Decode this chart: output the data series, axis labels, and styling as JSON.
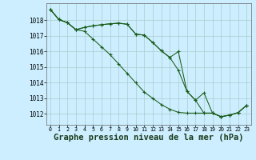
{
  "background_color": "#cceeff",
  "grid_color": "#aacccc",
  "line_color": "#1a5c1a",
  "xlabel": "Graphe pression niveau de la mer (hPa)",
  "xlabel_fontsize": 7.5,
  "ylim": [
    1011.3,
    1019.1
  ],
  "xlim": [
    -0.5,
    23.5
  ],
  "yticks": [
    1012,
    1013,
    1014,
    1015,
    1016,
    1017,
    1018
  ],
  "xticks": [
    0,
    1,
    2,
    3,
    4,
    5,
    6,
    7,
    8,
    9,
    10,
    11,
    12,
    13,
    14,
    15,
    16,
    17,
    18,
    19,
    20,
    21,
    22,
    23
  ],
  "line1_y": [
    1018.7,
    1018.05,
    1017.85,
    1017.4,
    1017.55,
    1017.65,
    1017.72,
    1017.78,
    1017.82,
    1017.75,
    1017.12,
    1017.05,
    1016.58,
    1016.05,
    1015.62,
    1016.0,
    1013.45,
    1012.88,
    1013.35,
    1012.05,
    1011.82,
    1011.92,
    1012.08,
    1012.55
  ],
  "line2_y": [
    1018.7,
    1018.05,
    1017.85,
    1017.4,
    1017.3,
    1016.8,
    1016.3,
    1015.8,
    1015.2,
    1014.6,
    1014.0,
    1013.4,
    1013.0,
    1012.6,
    1012.3,
    1012.1,
    1012.05,
    1012.05,
    1012.05,
    1012.05,
    1011.82,
    1011.92,
    1012.08,
    1012.55
  ],
  "line3_y": [
    1018.7,
    1018.05,
    1017.85,
    1017.4,
    1017.55,
    1017.65,
    1017.72,
    1017.78,
    1017.82,
    1017.75,
    1017.12,
    1017.05,
    1016.58,
    1016.05,
    1015.62,
    1014.8,
    1013.45,
    1012.88,
    1012.05,
    1012.05,
    1011.82,
    1011.92,
    1012.08,
    1012.55
  ]
}
